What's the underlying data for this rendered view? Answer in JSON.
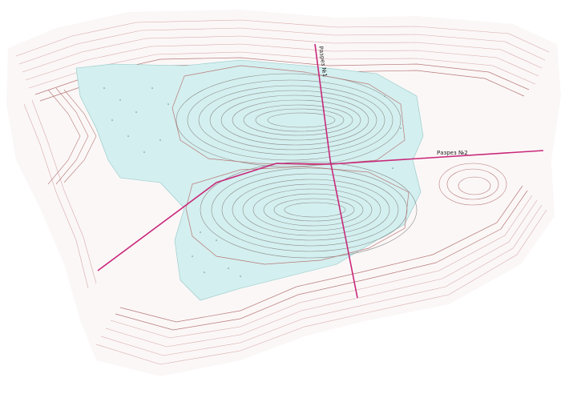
{
  "map": {
    "profile_labels": [
      "Разрез №1",
      "Разрез №2"
    ],
    "colors": {
      "background": "#ffffff",
      "contour_red": "#b87878",
      "contour_pink": "#d9a9a9",
      "contour_grey": "#8c8c8c",
      "water_fill": "#d4efef",
      "section_line": "#c8287a"
    },
    "icons": [
      "contour-lines",
      "pit-water-area",
      "section-line"
    ]
  }
}
